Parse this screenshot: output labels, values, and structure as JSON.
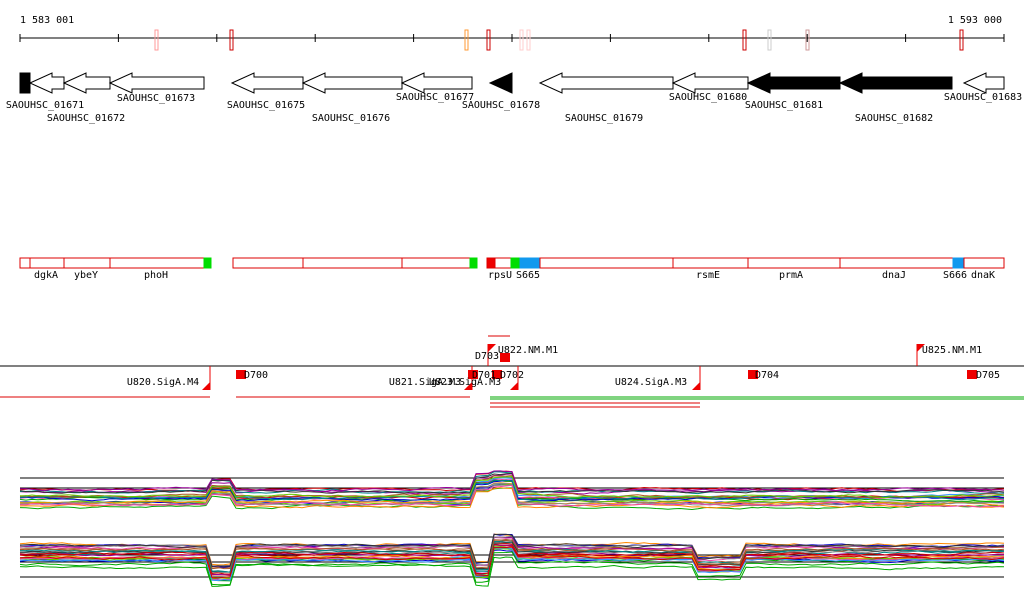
{
  "ruler": {
    "start": "1 583 001",
    "end": "1 593 000"
  },
  "genes": [
    "SAOUHSC_01671",
    "SAOUHSC_01672",
    "SAOUHSC_01673",
    "SAOUHSC_01675",
    "SAOUHSC_01676",
    "SAOUHSC_01677",
    "SAOUHSC_01678",
    "SAOUHSC_01679",
    "SAOUHSC_01680",
    "SAOUHSC_01681",
    "SAOUHSC_01682",
    "SAOUHSC_01683"
  ],
  "features": [
    "dgkA",
    "ybeY",
    "phoH",
    "rpsU",
    "S665",
    "rsmE",
    "prmA",
    "dnaJ",
    "S666",
    "dnaK"
  ],
  "promoters": [
    "D703",
    "U822.NM.M1",
    "U825.NM.M1",
    "U820.SigA.M4",
    "D700",
    "U821.SigA.M3",
    "U823.SigA.M3",
    "D701",
    "D702",
    "U824.SigA.M3",
    "D704",
    "D705"
  ]
}
